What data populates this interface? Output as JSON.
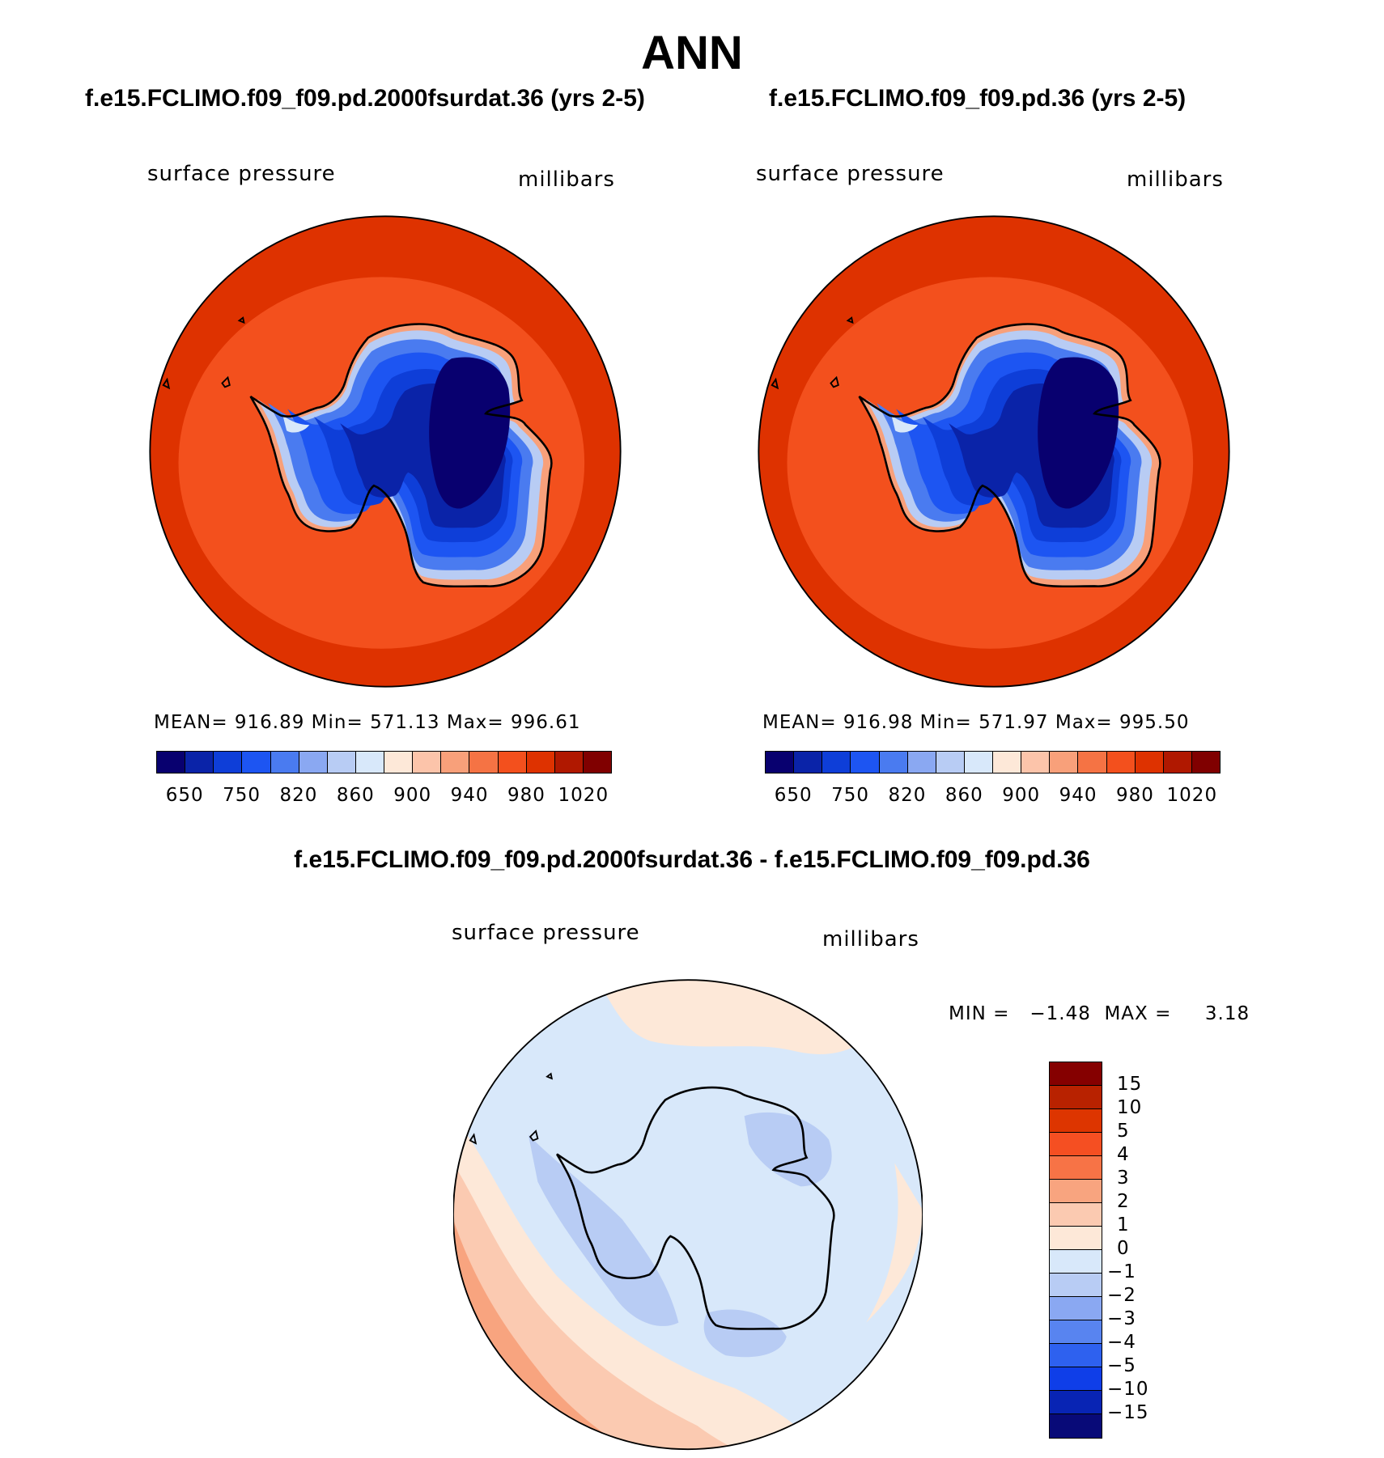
{
  "title": "ANN",
  "panels": [
    {
      "case": "f.e15.FCLIMO.f09_f09.pd.2000fsurdat.36 (yrs 2-5)",
      "variable": "surface pressure",
      "units": "millibars",
      "stats": "MEAN= 916.89   Min= 571.13   Max= 996.61"
    },
    {
      "case": "f.e15.FCLIMO.f09_f09.pd.36 (yrs 2-5)",
      "variable": "surface pressure",
      "units": "millibars",
      "stats": "MEAN= 916.98   Min= 571.97   Max= 995.50"
    }
  ],
  "colorbar": {
    "colors": [
      "#08006f",
      "#0a23a8",
      "#0e3ed8",
      "#1d55f2",
      "#4a7bf0",
      "#8aa8f2",
      "#b8ccf4",
      "#d8e8fa",
      "#fde8d8",
      "#fcc4aa",
      "#f8a07a",
      "#f57344",
      "#f3501d",
      "#de3200",
      "#b01800",
      "#800000"
    ],
    "ticks": [
      "650",
      "750",
      "820",
      "860",
      "900",
      "940",
      "980",
      "1020"
    ]
  },
  "difference": {
    "title": "f.e15.FCLIMO.f09_f09.pd.2000fsurdat.36 - f.e15.FCLIMO.f09_f09.pd.36",
    "variable": "surface pressure",
    "units": "millibars",
    "minmax": "MIN =   −1.48  MAX =     3.18",
    "colors": [
      "#850000",
      "#b82200",
      "#dd3500",
      "#f54f22",
      "#f77346",
      "#f8a47f",
      "#fbcab1",
      "#fde8d8",
      "#d8e8fa",
      "#b8ccf4",
      "#8aa8f2",
      "#5884f0",
      "#2e61ef",
      "#0f3ee8",
      "#0824b4",
      "#080a78"
    ],
    "ticks": [
      "15",
      "10",
      "5",
      "4",
      "3",
      "2",
      "1",
      "0",
      "−1",
      "−2",
      "−3",
      "−4",
      "−5",
      "−10",
      "−15"
    ]
  }
}
